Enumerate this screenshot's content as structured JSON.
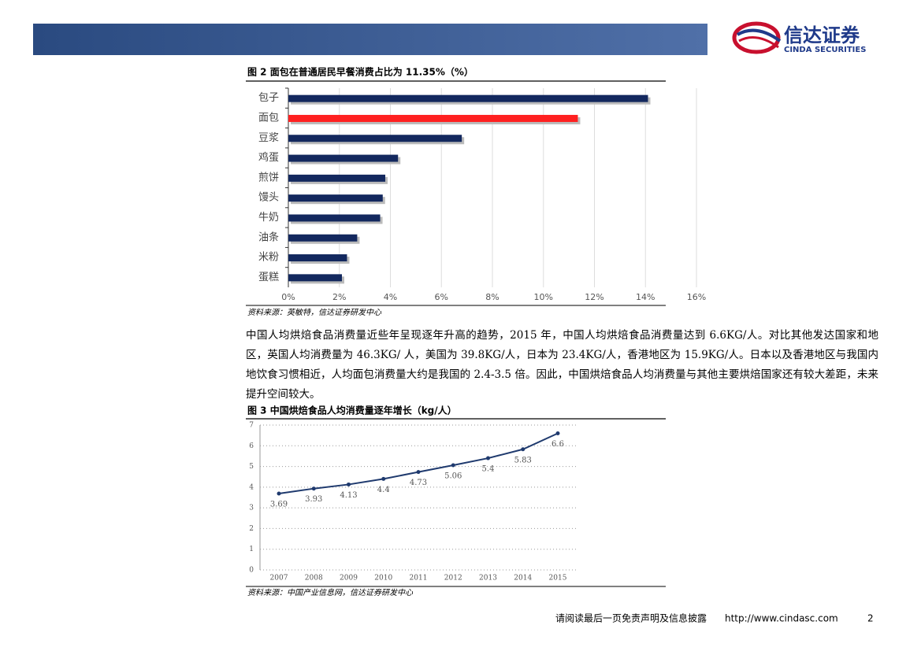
{
  "document": {
    "header": {
      "logo_cn": "信达证券",
      "logo_en": "CINDA SECURITIES"
    },
    "paragraph": "中国人均烘焙食品消费量近些年呈现逐年升高的趋势，2015 年，中国人均烘焙食品消费量达到 6.6KG/人。对比其他发达国家和地区，英国人均消费量为 46.3KG/ 人，美国为 39.8KG/人，日本为 23.4KG/人，香港地区为 15.9KG/人。日本以及香港地区与我国内地饮食习惯相近，人均面包消费量大约是我国的 2.4-3.5 倍。因此，中国烘焙食品人均消费量与其他主要烘焙国家还有较大差距，未来提升空间较大。",
    "footer": {
      "disclaimer": "请阅读最后一页免责声明及信息披露",
      "url": "http://www.cindasc.com",
      "page": "2"
    }
  },
  "chart_data": [
    {
      "type": "hbar",
      "title": "图 2 面包在普通居民早餐消费占比为 11.35%（%）",
      "source": "资料来源：英敏特，信达证券研发中心",
      "categories": [
        "包子",
        "面包",
        "豆浆",
        "鸡蛋",
        "煎饼",
        "馒头",
        "牛奶",
        "油条",
        "米粉",
        "蛋糕"
      ],
      "values": [
        14.1,
        11.35,
        6.8,
        4.3,
        3.8,
        3.7,
        3.6,
        2.7,
        2.3,
        2.1
      ],
      "colors": [
        "#13285e",
        "#ff2020",
        "#13285e",
        "#13285e",
        "#13285e",
        "#13285e",
        "#13285e",
        "#13285e",
        "#13285e",
        "#13285e"
      ],
      "xlim": [
        0,
        16
      ],
      "xticks": [
        {
          "value": 0,
          "label": "0%"
        },
        {
          "value": 2,
          "label": "2%"
        },
        {
          "value": 4,
          "label": "4%"
        },
        {
          "value": 6,
          "label": "6%"
        },
        {
          "value": 8,
          "label": "8%"
        },
        {
          "value": 10,
          "label": "10%"
        },
        {
          "value": 12,
          "label": "12%"
        },
        {
          "value": 14,
          "label": "14%"
        },
        {
          "value": 16,
          "label": "16%"
        }
      ],
      "grid": true
    },
    {
      "type": "line",
      "title": "图 3 中国烘焙食品人均消费量逐年增长（kg/人）",
      "source": "资料来源：中国产业信息网，信达证券研发中心",
      "categories": [
        "2007",
        "2008",
        "2009",
        "2010",
        "2011",
        "2012",
        "2013",
        "2014",
        "2015"
      ],
      "values": [
        3.69,
        3.93,
        4.13,
        4.4,
        4.73,
        5.06,
        5.4,
        5.83,
        6.6
      ],
      "color": "#1f3a6e",
      "ylim": [
        0,
        7
      ],
      "yticks": [
        0,
        1,
        2,
        3,
        4,
        5,
        6,
        7
      ],
      "grid": true
    }
  ]
}
